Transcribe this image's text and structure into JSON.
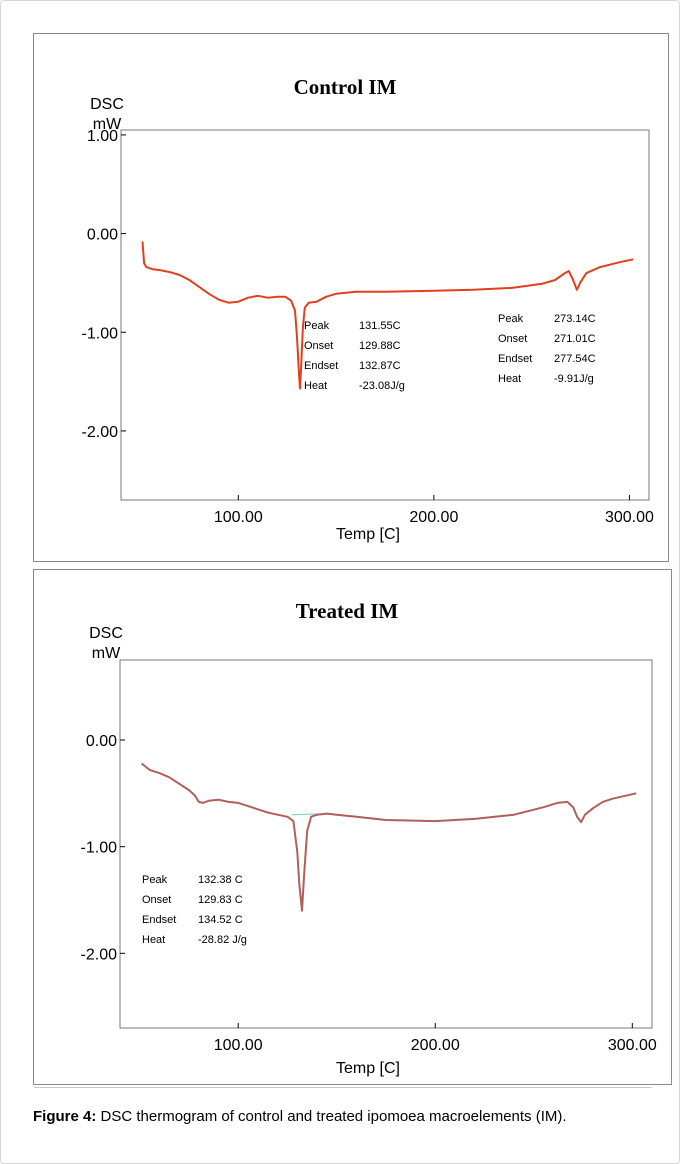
{
  "caption": {
    "label": "Figure 4:",
    "text": " DSC thermogram of control and treated ipomoea macroelements (IM)."
  },
  "chart_data": [
    {
      "type": "line",
      "title": "Control IM",
      "ylabel_line1": "DSC",
      "ylabel_line2": "mW",
      "xlabel": "Temp [C]",
      "xlim": [
        40,
        310
      ],
      "ylim": [
        -2.7,
        1.05
      ],
      "x_ticks": [
        100,
        200,
        300
      ],
      "x_tick_labels": [
        "100.00",
        "200.00",
        "300.00"
      ],
      "y_ticks": [
        1.0,
        0.0,
        -1.0,
        -2.0
      ],
      "y_tick_labels": [
        "1.00",
        "0.00",
        "-1.00",
        "-2.00"
      ],
      "line_color": "#e0401e",
      "series": [
        {
          "x": [
            51,
            51.8,
            53,
            56,
            60,
            65,
            70,
            75,
            80,
            85,
            90,
            95,
            100,
            105,
            110,
            115,
            120,
            124,
            127,
            129,
            130,
            131,
            131.55,
            132,
            133,
            134,
            136,
            140,
            145,
            150,
            160,
            175,
            200,
            220,
            240,
            255,
            262,
            267,
            269,
            271,
            273.14,
            275,
            278,
            285,
            295,
            302
          ],
          "y": [
            -0.08,
            -0.3,
            -0.34,
            -0.36,
            -0.37,
            -0.39,
            -0.42,
            -0.47,
            -0.54,
            -0.61,
            -0.67,
            -0.7,
            -0.69,
            -0.65,
            -0.63,
            -0.65,
            -0.64,
            -0.64,
            -0.68,
            -0.78,
            -1.05,
            -1.42,
            -1.57,
            -1.4,
            -0.95,
            -0.75,
            -0.7,
            -0.69,
            -0.64,
            -0.61,
            -0.59,
            -0.59,
            -0.58,
            -0.57,
            -0.55,
            -0.51,
            -0.47,
            -0.4,
            -0.38,
            -0.46,
            -0.57,
            -0.49,
            -0.4,
            -0.34,
            -0.29,
            -0.26
          ]
        }
      ],
      "annotations": [
        {
          "rows": [
            {
              "label": "Peak",
              "value": "131.55C"
            },
            {
              "label": "Onset",
              "value": "129.88C"
            },
            {
              "label": "Endset",
              "value": "132.87C"
            },
            {
              "label": "Heat",
              "value": "-23.08J/g"
            }
          ]
        },
        {
          "rows": [
            {
              "label": "Peak",
              "value": "273.14C"
            },
            {
              "label": "Onset",
              "value": "271.01C"
            },
            {
              "label": "Endset",
              "value": "277.54C"
            },
            {
              "label": "Heat",
              "value": "-9.91J/g"
            }
          ]
        }
      ]
    },
    {
      "type": "line",
      "title": "Treated IM",
      "ylabel_line1": "DSC",
      "ylabel_line2": "mW",
      "xlabel": "Temp [C]",
      "xlim": [
        40,
        310
      ],
      "ylim": [
        -2.7,
        0.75
      ],
      "x_ticks": [
        100,
        200,
        300
      ],
      "x_tick_labels": [
        "100.00",
        "200.00",
        "300.00"
      ],
      "y_ticks": [
        0.0,
        -1.0,
        -2.0
      ],
      "y_tick_labels": [
        "0.00",
        "-1.00",
        "-2.00"
      ],
      "line_color": "#b0605a",
      "baseline_color": "#7fd1d6",
      "series": [
        {
          "x": [
            51,
            55,
            60,
            65,
            70,
            75,
            78,
            80,
            82,
            85,
            90,
            95,
            100,
            105,
            110,
            115,
            120,
            125,
            128,
            130,
            131,
            132.38,
            133.5,
            135,
            137,
            140,
            145,
            150,
            160,
            175,
            200,
            220,
            240,
            255,
            262,
            267,
            270,
            272,
            274,
            276,
            280,
            285,
            290,
            302
          ],
          "y": [
            -0.22,
            -0.28,
            -0.31,
            -0.35,
            -0.41,
            -0.47,
            -0.52,
            -0.58,
            -0.59,
            -0.57,
            -0.56,
            -0.58,
            -0.59,
            -0.62,
            -0.65,
            -0.68,
            -0.7,
            -0.72,
            -0.76,
            -1.05,
            -1.35,
            -1.6,
            -1.25,
            -0.85,
            -0.72,
            -0.7,
            -0.69,
            -0.7,
            -0.72,
            -0.75,
            -0.76,
            -0.74,
            -0.7,
            -0.63,
            -0.59,
            -0.58,
            -0.63,
            -0.72,
            -0.77,
            -0.7,
            -0.64,
            -0.58,
            -0.55,
            -0.5
          ]
        }
      ],
      "baseline": {
        "x": [
          127,
          148
        ],
        "y": [
          -0.7,
          -0.69
        ]
      },
      "annotations": [
        {
          "rows": [
            {
              "label": "Peak",
              "value": "132.38 C"
            },
            {
              "label": "Onset",
              "value": "129.83 C"
            },
            {
              "label": "Endset",
              "value": "134.52 C"
            },
            {
              "label": "Heat",
              "value": "-28.82 J/g"
            }
          ]
        }
      ]
    }
  ]
}
